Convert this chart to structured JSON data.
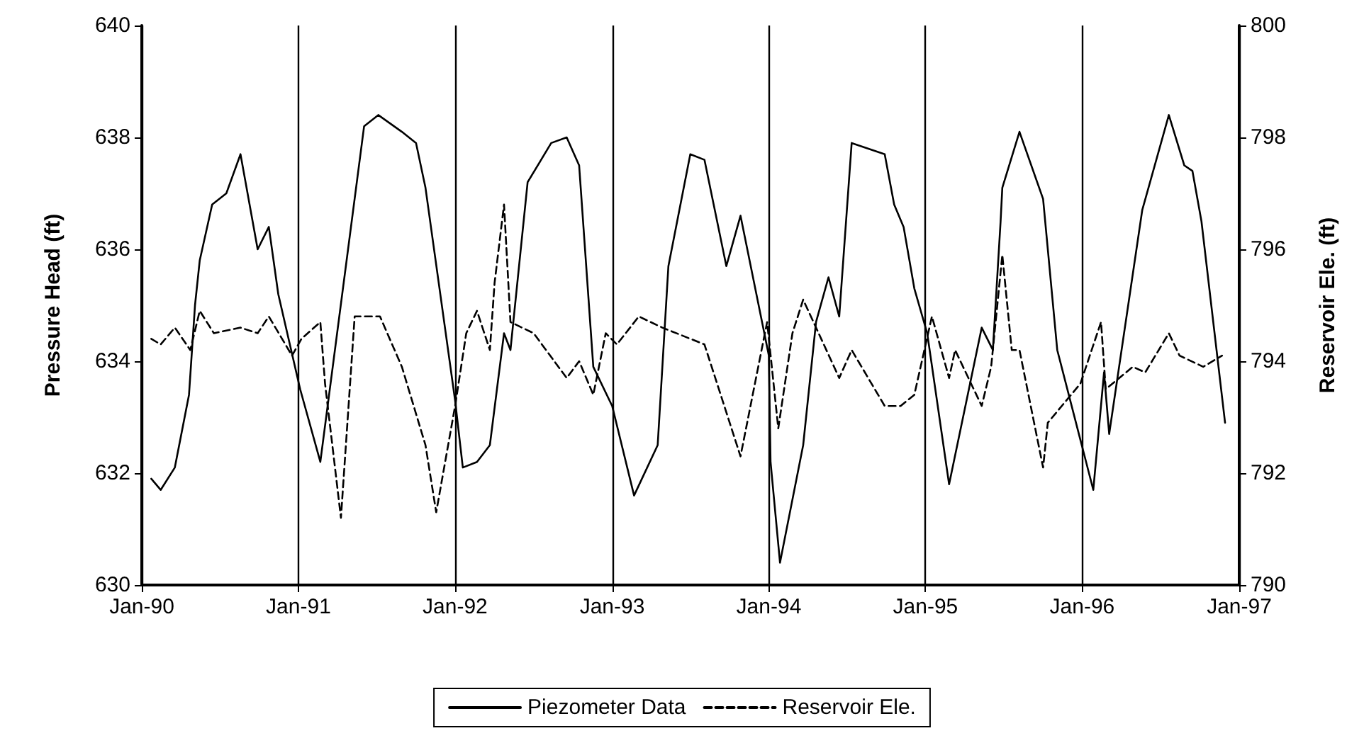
{
  "chart_data": {
    "type": "line",
    "ylabel": "Pressure Head (ft)",
    "y2label": "Reservoir Ele. (ft)",
    "xlim": [
      "1990-01-01",
      "1997-01-01"
    ],
    "xticks": [
      {
        "value": "1990-01-01",
        "label": "Jan-90"
      },
      {
        "value": "1991-01-01",
        "label": "Jan-91"
      },
      {
        "value": "1992-01-01",
        "label": "Jan-92"
      },
      {
        "value": "1993-01-01",
        "label": "Jan-93"
      },
      {
        "value": "1994-01-01",
        "label": "Jan-94"
      },
      {
        "value": "1995-01-01",
        "label": "Jan-95"
      },
      {
        "value": "1996-01-01",
        "label": "Jan-96"
      },
      {
        "value": "1997-01-01",
        "label": "Jan-97"
      }
    ],
    "ylim": [
      630,
      640
    ],
    "yticks": [
      630,
      632,
      634,
      636,
      638,
      640
    ],
    "y2lim": [
      790,
      800
    ],
    "y2ticks": [
      790,
      792,
      794,
      796,
      798,
      800
    ],
    "grid": "x",
    "legend": "bottom",
    "marker": "none",
    "series": [
      {
        "name": "Piezometer Data",
        "color": "#000000",
        "line_style": "solid",
        "x": [
          "1990-01-23",
          "1990-02-14",
          "1990-03-19",
          "1990-04-21",
          "1990-05-05",
          "1990-05-16",
          "1990-06-14",
          "1990-07-17",
          "1990-08-19",
          "1990-09-28",
          "1990-10-24",
          "1990-11-15",
          "1991-01-05",
          "1991-02-21",
          "1991-06-03",
          "1991-07-06",
          "1991-08-30",
          "1991-10-02",
          "1991-10-24",
          "1992-01-01",
          "1992-01-19",
          "1992-02-21",
          "1992-03-22",
          "1992-04-24",
          "1992-05-09",
          "1992-06-18",
          "1992-08-12",
          "1992-09-17",
          "1992-10-16",
          "1992-11-18",
          "1993-01-01",
          "1993-02-21",
          "1993-04-17",
          "1993-05-12",
          "1993-07-02",
          "1993-08-04",
          "1993-09-24",
          "1993-10-27",
          "1994-01-01",
          "1994-01-05",
          "1994-01-27",
          "1994-03-22",
          "1994-04-21",
          "1994-05-20",
          "1994-06-14",
          "1994-07-13",
          "1994-09-28",
          "1994-10-20",
          "1994-11-11",
          "1994-12-06",
          "1995-01-05",
          "1995-02-25",
          "1995-05-12",
          "1995-06-07",
          "1995-06-25",
          "1995-06-29",
          "1995-08-08",
          "1995-10-02",
          "1995-11-04",
          "1996-01-27",
          "1996-02-21",
          "1996-03-04",
          "1996-05-20",
          "1996-07-21",
          "1996-08-26",
          "1996-09-14",
          "1996-10-05",
          "1996-11-29"
        ],
        "values": [
          631.9,
          631.7,
          632.1,
          633.4,
          635.0,
          635.8,
          636.8,
          637.0,
          637.7,
          636.0,
          636.4,
          635.2,
          633.5,
          632.2,
          638.2,
          638.4,
          638.1,
          637.9,
          637.1,
          633.3,
          632.1,
          632.2,
          632.5,
          634.5,
          634.2,
          637.2,
          637.9,
          638.0,
          637.5,
          633.9,
          633.2,
          631.6,
          632.5,
          635.7,
          637.7,
          637.6,
          635.7,
          636.6,
          634.1,
          632.2,
          630.4,
          632.5,
          634.7,
          635.5,
          634.8,
          637.9,
          637.7,
          636.8,
          636.4,
          635.3,
          634.5,
          631.8,
          634.6,
          634.2,
          636.5,
          637.1,
          638.1,
          636.9,
          634.2,
          631.7,
          633.8,
          632.7,
          636.7,
          638.4,
          637.5,
          637.4,
          636.5,
          632.9
        ]
      },
      {
        "name": "Reservoir Ele.",
        "color": "#000000",
        "line_style": "dashed",
        "axis": "y2",
        "x": [
          "1990-01-23",
          "1990-02-14",
          "1990-03-19",
          "1990-04-24",
          "1990-05-16",
          "1990-06-18",
          "1990-08-19",
          "1990-09-28",
          "1990-10-24",
          "1990-12-17",
          "1991-01-08",
          "1991-02-21",
          "1991-03-04",
          "1991-04-10",
          "1991-05-12",
          "1991-07-10",
          "1991-08-30",
          "1991-10-24",
          "1991-11-18",
          "1992-01-01",
          "1992-01-27",
          "1992-02-21",
          "1992-03-22",
          "1992-04-02",
          "1992-04-24",
          "1992-05-09",
          "1992-07-02",
          "1992-09-17",
          "1992-10-16",
          "1992-11-18",
          "1992-12-17",
          "1993-01-12",
          "1993-03-04",
          "1993-04-28",
          "1993-08-04",
          "1993-10-27",
          "1993-12-28",
          "1994-01-23",
          "1994-02-25",
          "1994-03-22",
          "1994-06-14",
          "1994-07-13",
          "1994-09-28",
          "1994-11-04",
          "1994-12-06",
          "1995-01-16",
          "1995-02-25",
          "1995-03-11",
          "1995-05-12",
          "1995-06-03",
          "1995-06-29",
          "1995-07-21",
          "1995-08-08",
          "1995-10-02",
          "1995-10-13",
          "1995-12-28",
          "1996-02-14",
          "1996-02-25",
          "1996-04-28",
          "1996-05-27",
          "1996-07-21",
          "1996-08-15",
          "1996-10-09",
          "1996-11-22"
        ],
        "values": [
          794.4,
          794.3,
          794.6,
          794.2,
          794.9,
          794.5,
          794.6,
          794.5,
          794.8,
          794.1,
          794.4,
          794.7,
          793.6,
          791.2,
          794.8,
          794.8,
          793.9,
          792.5,
          791.3,
          793.2,
          794.5,
          794.9,
          794.2,
          795.4,
          796.8,
          794.7,
          794.5,
          793.7,
          794.0,
          793.4,
          794.5,
          794.3,
          794.8,
          794.6,
          794.3,
          792.3,
          794.7,
          792.8,
          794.5,
          795.1,
          793.7,
          794.2,
          793.2,
          793.2,
          793.4,
          794.8,
          793.7,
          794.2,
          793.2,
          793.9,
          795.9,
          794.2,
          794.2,
          792.1,
          792.9,
          793.6,
          794.7,
          793.5,
          793.9,
          793.8,
          794.5,
          794.1,
          793.9,
          794.1
        ]
      }
    ]
  }
}
